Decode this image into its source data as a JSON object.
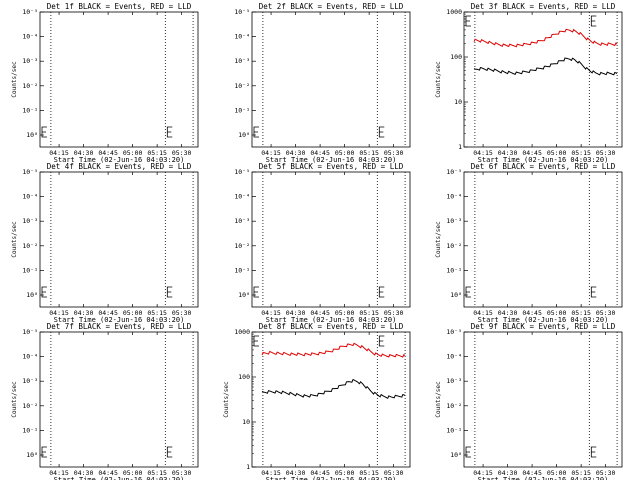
{
  "panels": [
    {
      "det": 1,
      "title": "Det 1f BLACK = Events, RED = LLD",
      "mode": "sup",
      "ylabel": "Counts/sec",
      "series": []
    },
    {
      "det": 2,
      "title": "Det 2f BLACK = Events, RED = LLD",
      "mode": "sup",
      "ylabel": "",
      "series": []
    },
    {
      "det": 3,
      "title": "Det 3f BLACK = Events, RED = LLD",
      "mode": "log",
      "ylabel": "Counts/sec",
      "series": [
        {
          "color": "#e00000",
          "values": [
            235,
            232,
            225,
            218,
            206,
            195,
            188,
            183,
            181,
            180,
            182,
            186,
            192,
            200,
            210,
            222,
            240,
            265,
            295,
            330,
            360,
            385,
            395,
            385,
            350,
            305,
            258,
            225,
            205,
            196,
            193,
            193,
            193,
            193
          ]
        },
        {
          "color": "#000000",
          "values": [
            52,
            54,
            55,
            54,
            52,
            50,
            48,
            46,
            45,
            44,
            44,
            45,
            47,
            49,
            52,
            55,
            58,
            62,
            67,
            74,
            82,
            89,
            92,
            88,
            78,
            66,
            55,
            48,
            44,
            43,
            43,
            43,
            43,
            43
          ]
        }
      ]
    },
    {
      "det": 4,
      "title": "Det 4f BLACK = Events, RED = LLD",
      "mode": "sup",
      "ylabel": "Counts/sec",
      "series": []
    },
    {
      "det": 5,
      "title": "Det 5f BLACK = Events, RED = LLD",
      "mode": "sup",
      "ylabel": "",
      "series": []
    },
    {
      "det": 6,
      "title": "Det 6f BLACK = Events, RED = LLD",
      "mode": "sup",
      "ylabel": "Counts/sec",
      "series": []
    },
    {
      "det": 7,
      "title": "Det 7f BLACK = Events, RED = LLD",
      "mode": "sup",
      "ylabel": "Counts/sec",
      "series": []
    },
    {
      "det": 8,
      "title": "Det 8f BLACK = Events, RED = LLD",
      "mode": "log",
      "ylabel": "Counts/sec",
      "series": [
        {
          "color": "#e00000",
          "values": [
            330,
            340,
            345,
            342,
            335,
            330,
            325,
            322,
            320,
            318,
            318,
            320,
            325,
            332,
            342,
            358,
            380,
            410,
            450,
            490,
            520,
            530,
            510,
            470,
            420,
            370,
            330,
            310,
            300,
            298,
            297,
            297,
            297,
            298
          ]
        },
        {
          "color": "#000000",
          "values": [
            45,
            46,
            47,
            47,
            46,
            45,
            44,
            42,
            40,
            39,
            38,
            38,
            39,
            41,
            44,
            47,
            51,
            56,
            62,
            70,
            78,
            82,
            80,
            72,
            60,
            50,
            43,
            39,
            37,
            36,
            36,
            37,
            38,
            39
          ]
        }
      ]
    },
    {
      "det": 9,
      "title": "Det 9f BLACK = Events, RED = LLD",
      "mode": "sup",
      "ylabel": "Counts/sec",
      "series": []
    }
  ],
  "xlabel": "Start Time (02-Jun-16 04:03:20)",
  "xticks": [
    "04:15",
    "04:30",
    "04:45",
    "05:00",
    "05:15",
    "05:30"
  ],
  "sup_yticks": [
    "10⁰",
    "10⁻¹",
    "10⁻²",
    "10⁻³",
    "10⁻⁴",
    "10⁻⁵"
  ],
  "log_yticks": [
    "1",
    "10",
    "100",
    "1000"
  ],
  "chart_data": {
    "type": "line",
    "x_start": "04:03:20",
    "x_end": "05:40:00",
    "ylim_log": [
      1,
      1000
    ],
    "dotted_lines_at": [
      "04:10:00",
      "05:20:00",
      "05:37:00"
    ],
    "panels_with_data": [
      3,
      8
    ]
  }
}
